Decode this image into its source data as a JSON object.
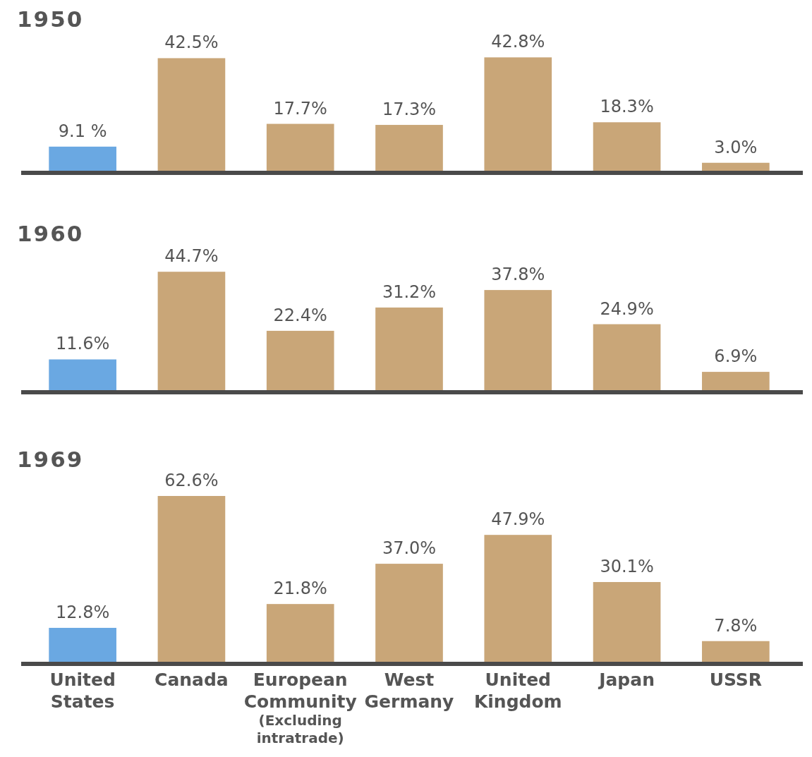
{
  "chart_data": [
    {
      "type": "bar",
      "title": "1950",
      "categories": [
        null,
        null,
        null,
        null,
        null,
        null,
        null
      ],
      "values": [
        9.1,
        42.5,
        17.7,
        17.3,
        42.8,
        18.3,
        3.0
      ],
      "value_labels": [
        "9.1 %",
        "42.5%",
        "17.7%",
        "17.3%",
        "42.8%",
        "18.3%",
        "3.0%"
      ],
      "colors": [
        "#6aa8e2",
        "#c9a678",
        "#c9a678",
        "#c9a678",
        "#c9a678",
        "#c9a678",
        "#c9a678"
      ]
    },
    {
      "type": "bar",
      "title": "1960",
      "categories": [
        null,
        null,
        null,
        null,
        null,
        null,
        null
      ],
      "values": [
        11.6,
        44.7,
        22.4,
        31.2,
        37.8,
        24.9,
        6.9
      ],
      "value_labels": [
        "11.6%",
        "44.7%",
        "22.4%",
        "31.2%",
        "37.8%",
        "24.9%",
        "6.9%"
      ],
      "colors": [
        "#6aa8e2",
        "#c9a678",
        "#c9a678",
        "#c9a678",
        "#c9a678",
        "#c9a678",
        "#c9a678"
      ]
    },
    {
      "type": "bar",
      "title": "1969",
      "categories": [
        "United States",
        "Canada",
        "European Community (Excluding intratrade)",
        "West Germany",
        "United Kingdom",
        "Japan",
        "USSR"
      ],
      "values": [
        12.8,
        62.6,
        21.8,
        37.0,
        47.9,
        30.1,
        7.8
      ],
      "value_labels": [
        "12.8%",
        "62.6%",
        "21.8%",
        "37.0%",
        "47.9%",
        "30.1%",
        "7.8%"
      ],
      "colors": [
        "#6aa8e2",
        "#c9a678",
        "#c9a678",
        "#c9a678",
        "#c9a678",
        "#c9a678",
        "#c9a678"
      ],
      "tick_labels": "x"
    }
  ]
}
